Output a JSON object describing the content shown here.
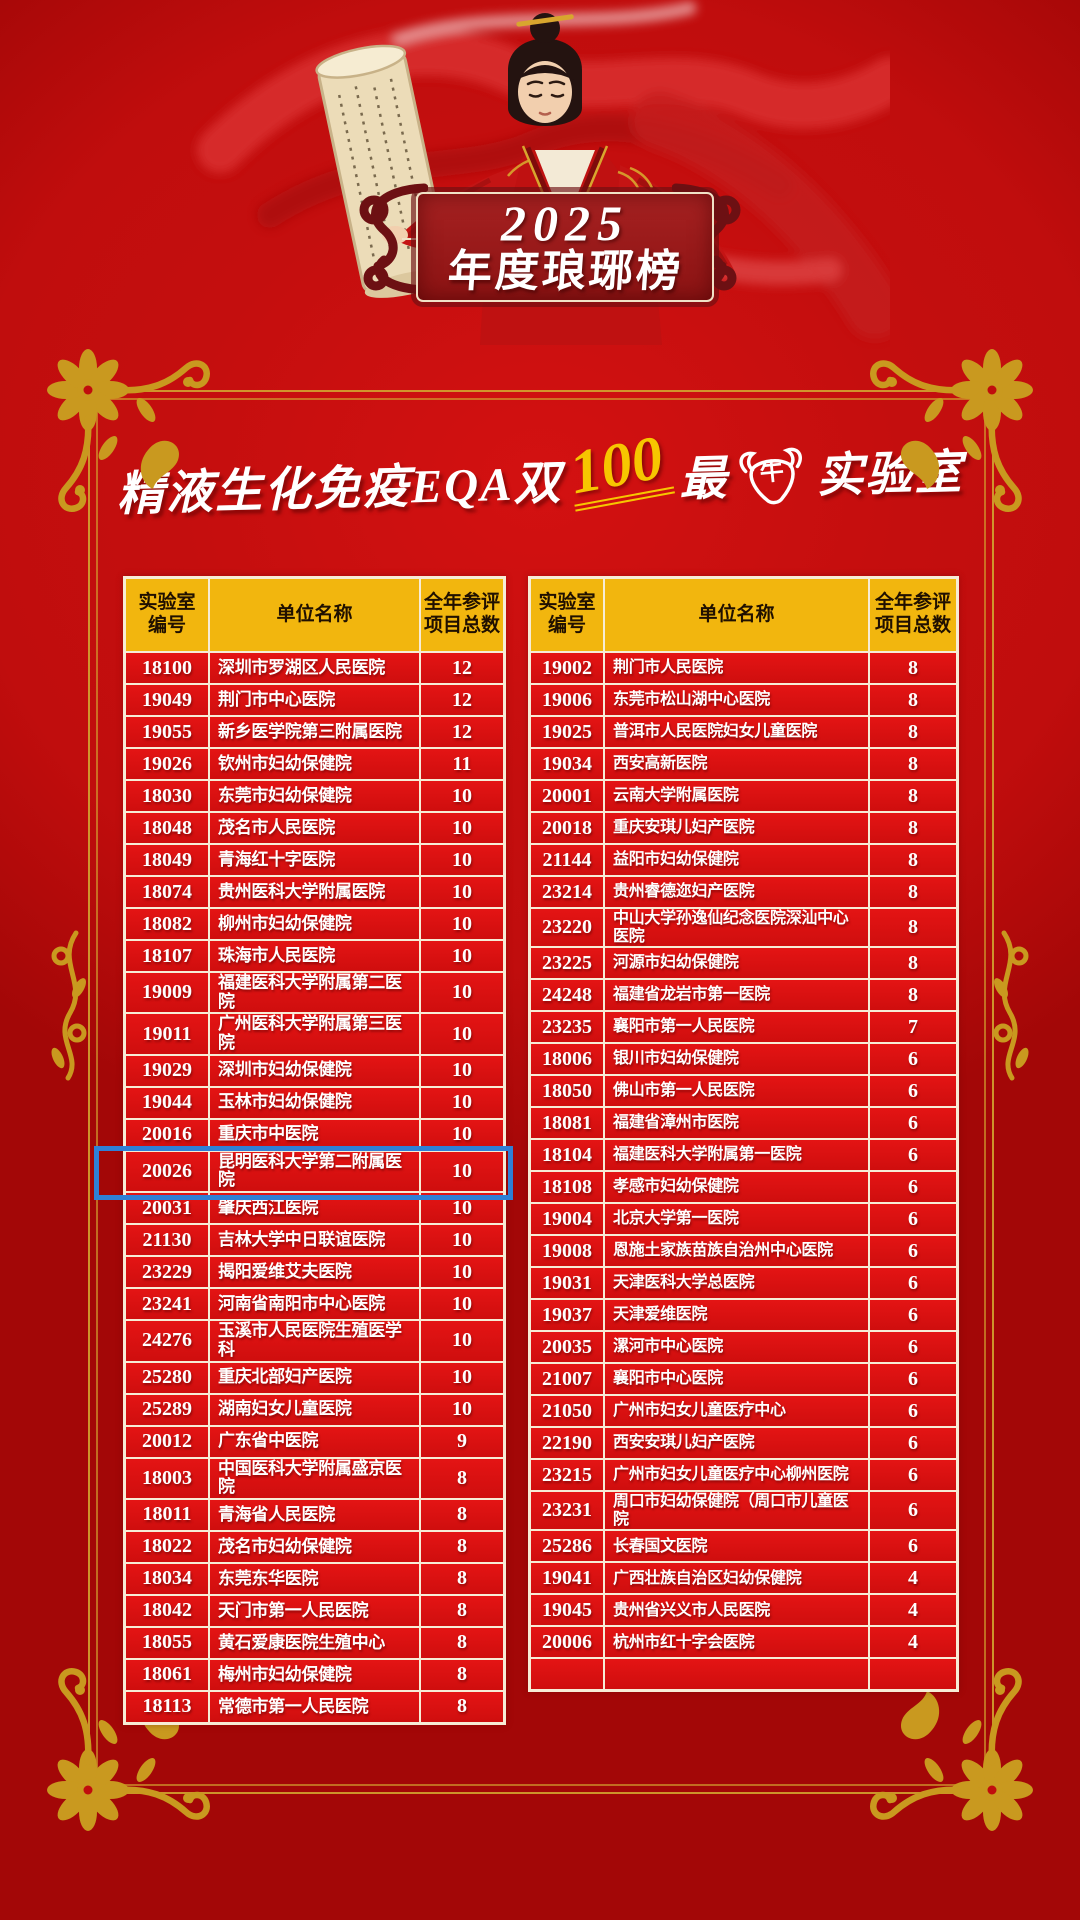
{
  "banner": {
    "year": "2025",
    "title": "年度琅琊榜"
  },
  "subtitle": {
    "part1": "精液生化免疫EQA双",
    "score": "100",
    "part2": "最",
    "bull_char": "牛",
    "part3": "实验室"
  },
  "tables": {
    "headers": {
      "id_line1": "实验室",
      "id_line2": "编号",
      "name": "单位名称",
      "count_line1": "全年参评",
      "count_line2": "项目总数"
    },
    "highlight_lab_id": "20026",
    "left_rows": [
      [
        "18100",
        "深圳市罗湖区人民医院",
        "12"
      ],
      [
        "19049",
        "荆门市中心医院",
        "12"
      ],
      [
        "19055",
        "新乡医学院第三附属医院",
        "12"
      ],
      [
        "19026",
        "钦州市妇幼保健院",
        "11"
      ],
      [
        "18030",
        "东莞市妇幼保健院",
        "10"
      ],
      [
        "18048",
        "茂名市人民医院",
        "10"
      ],
      [
        "18049",
        "青海红十字医院",
        "10"
      ],
      [
        "18074",
        "贵州医科大学附属医院",
        "10"
      ],
      [
        "18082",
        "柳州市妇幼保健院",
        "10"
      ],
      [
        "18107",
        "珠海市人民医院",
        "10"
      ],
      [
        "19009",
        "福建医科大学附属第二医院",
        "10"
      ],
      [
        "19011",
        "广州医科大学附属第三医院",
        "10"
      ],
      [
        "19029",
        "深圳市妇幼保健院",
        "10"
      ],
      [
        "19044",
        "玉林市妇幼保健院",
        "10"
      ],
      [
        "20016",
        "重庆市中医院",
        "10"
      ],
      [
        "20026",
        "昆明医科大学第二附属医院",
        "10"
      ],
      [
        "20031",
        "肇庆西江医院",
        "10"
      ],
      [
        "21130",
        "吉林大学中日联谊医院",
        "10"
      ],
      [
        "23229",
        "揭阳爱维艾夫医院",
        "10"
      ],
      [
        "23241",
        "河南省南阳市中心医院",
        "10"
      ],
      [
        "24276",
        "玉溪市人民医院生殖医学科",
        "10"
      ],
      [
        "25280",
        "重庆北部妇产医院",
        "10"
      ],
      [
        "25289",
        "湖南妇女儿童医院",
        "10"
      ],
      [
        "20012",
        "广东省中医院",
        "9"
      ],
      [
        "18003",
        "中国医科大学附属盛京医院",
        "8"
      ],
      [
        "18011",
        "青海省人民医院",
        "8"
      ],
      [
        "18022",
        "茂名市妇幼保健院",
        "8"
      ],
      [
        "18034",
        "东莞东华医院",
        "8"
      ],
      [
        "18042",
        "天门市第一人民医院",
        "8"
      ],
      [
        "18055",
        "黄石爱康医院生殖中心",
        "8"
      ],
      [
        "18061",
        "梅州市妇幼保健院",
        "8"
      ],
      [
        "18113",
        "常德市第一人民医院",
        "8"
      ]
    ],
    "right_rows": [
      [
        "19002",
        "荆门市人民医院",
        "8"
      ],
      [
        "19006",
        "东莞市松山湖中心医院",
        "8"
      ],
      [
        "19025",
        "普洱市人民医院妇女儿童医院",
        "8"
      ],
      [
        "19034",
        "西安高新医院",
        "8"
      ],
      [
        "20001",
        "云南大学附属医院",
        "8"
      ],
      [
        "20018",
        "重庆安琪儿妇产医院",
        "8"
      ],
      [
        "21144",
        "益阳市妇幼保健院",
        "8"
      ],
      [
        "23214",
        "贵州睿德迩妇产医院",
        "8"
      ],
      [
        "23220",
        "中山大学孙逸仙纪念医院深汕中心医院",
        "8"
      ],
      [
        "23225",
        "河源市妇幼保健院",
        "8"
      ],
      [
        "24248",
        "福建省龙岩市第一医院",
        "8"
      ],
      [
        "23235",
        "襄阳市第一人民医院",
        "7"
      ],
      [
        "18006",
        "银川市妇幼保健院",
        "6"
      ],
      [
        "18050",
        "佛山市第一人民医院",
        "6"
      ],
      [
        "18081",
        "福建省漳州市医院",
        "6"
      ],
      [
        "18104",
        "福建医科大学附属第一医院",
        "6"
      ],
      [
        "18108",
        "孝感市妇幼保健院",
        "6"
      ],
      [
        "19004",
        "北京大学第一医院",
        "6"
      ],
      [
        "19008",
        "恩施土家族苗族自治州中心医院",
        "6"
      ],
      [
        "19031",
        "天津医科大学总医院",
        "6"
      ],
      [
        "19037",
        "天津爱维医院",
        "6"
      ],
      [
        "20035",
        "漯河市中心医院",
        "6"
      ],
      [
        "21007",
        "襄阳市中心医院",
        "6"
      ],
      [
        "21050",
        "广州市妇女儿童医疗中心",
        "6"
      ],
      [
        "22190",
        "西安安琪儿妇产医院",
        "6"
      ],
      [
        "23215",
        "广州市妇女儿童医疗中心柳州医院",
        "6"
      ],
      [
        "23231",
        "周口市妇幼保健院（周口市儿童医院",
        "6"
      ],
      [
        "25286",
        "长春国文医院",
        "6"
      ],
      [
        "19041",
        "广西壮族自治区妇幼保健院",
        "4"
      ],
      [
        "19045",
        "贵州省兴义市人民医院",
        "4"
      ],
      [
        "20006",
        "杭州市红十字会医院",
        "4"
      ],
      [
        "",
        "",
        ""
      ]
    ]
  },
  "colors": {
    "page_red": "#c00d0d",
    "row_red": "#dc1111",
    "border_cream": "#f7ecd6",
    "header_gold": "#f2b60e",
    "gold": "#c9991f",
    "highlight_blue": "#2f80d6",
    "score_yellow": "#f7c600",
    "banner_red": "#9c1a1a",
    "banner_dark": "#6d1013"
  }
}
